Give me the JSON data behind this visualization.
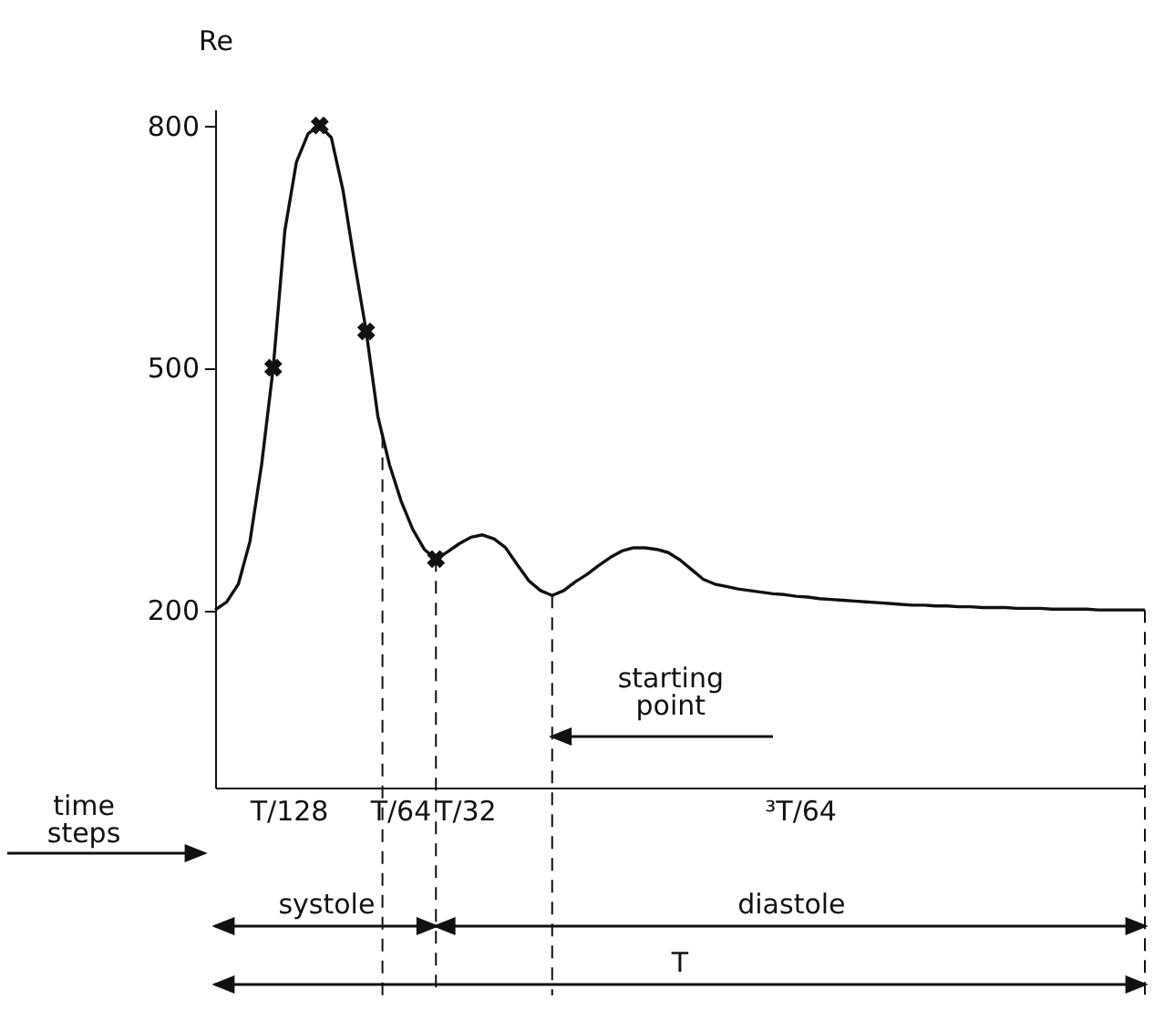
{
  "chart_data": {
    "type": "line",
    "ylabel": "Re",
    "categories": [
      null,
      null,
      null,
      null,
      null,
      null,
      null,
      null,
      null,
      null,
      null,
      null,
      null,
      null,
      null,
      null,
      null,
      null,
      null,
      null,
      null,
      null,
      null,
      null,
      null,
      null,
      null,
      null,
      null,
      null,
      null,
      null,
      null,
      null,
      null,
      null,
      null,
      null,
      null,
      null,
      null,
      null,
      null,
      null,
      null,
      null,
      null,
      null,
      null,
      null,
      null,
      null,
      null,
      null,
      null,
      null,
      null,
      null,
      null,
      null,
      null,
      null,
      null,
      null,
      null,
      null,
      null,
      null,
      null,
      null,
      null,
      null,
      null,
      null,
      null,
      null,
      null,
      null,
      null,
      null,
      null
    ],
    "ylim": [
      -20,
      820
    ],
    "yticks": [
      200,
      500,
      800
    ],
    "tick_labels": "y",
    "series": [
      {
        "color": "#111111",
        "values": [
          200,
          210,
          232,
          285,
          380,
          500,
          670,
          755,
          790,
          800,
          785,
          720,
          630,
          545,
          440,
          380,
          335,
          300,
          275,
          263,
          272,
          282,
          290,
          293,
          288,
          277,
          256,
          236,
          224,
          218,
          224,
          235,
          244,
          255,
          265,
          273,
          277,
          277,
          275,
          271,
          262,
          250,
          238,
          232,
          229,
          226,
          224,
          222,
          220,
          219,
          217,
          216,
          214,
          213,
          212,
          211,
          210,
          209,
          208,
          207,
          206,
          206,
          205,
          205,
          204,
          204,
          203,
          203,
          203,
          202,
          202,
          202,
          201,
          201,
          201,
          201,
          200,
          200,
          200,
          200,
          200
        ]
      },
      {
        "type": "scatter",
        "color": "#111111",
        "marker": "cross",
        "values": [
          null,
          null,
          null,
          null,
          null,
          500,
          null,
          null,
          null,
          800,
          null,
          null,
          null,
          545,
          null,
          null,
          null,
          null,
          null,
          263,
          null,
          null,
          null,
          null,
          null,
          null,
          null,
          null,
          null,
          null,
          null,
          null,
          null,
          null,
          null,
          null,
          null,
          null,
          null,
          null,
          null,
          null,
          null,
          null,
          null,
          null,
          null,
          null,
          null,
          null,
          null,
          null,
          null,
          null,
          null,
          null,
          null,
          null,
          null,
          null,
          null,
          null,
          null,
          null,
          null,
          null,
          null,
          null,
          null,
          null,
          null,
          null,
          null,
          null,
          null,
          null,
          null,
          null,
          null,
          null,
          null
        ]
      }
    ],
    "annotations": [
      "time steps",
      "T/128",
      "T/64",
      "T/32",
      "³T/64",
      "starting point",
      "systole",
      "diastole",
      "T"
    ]
  }
}
